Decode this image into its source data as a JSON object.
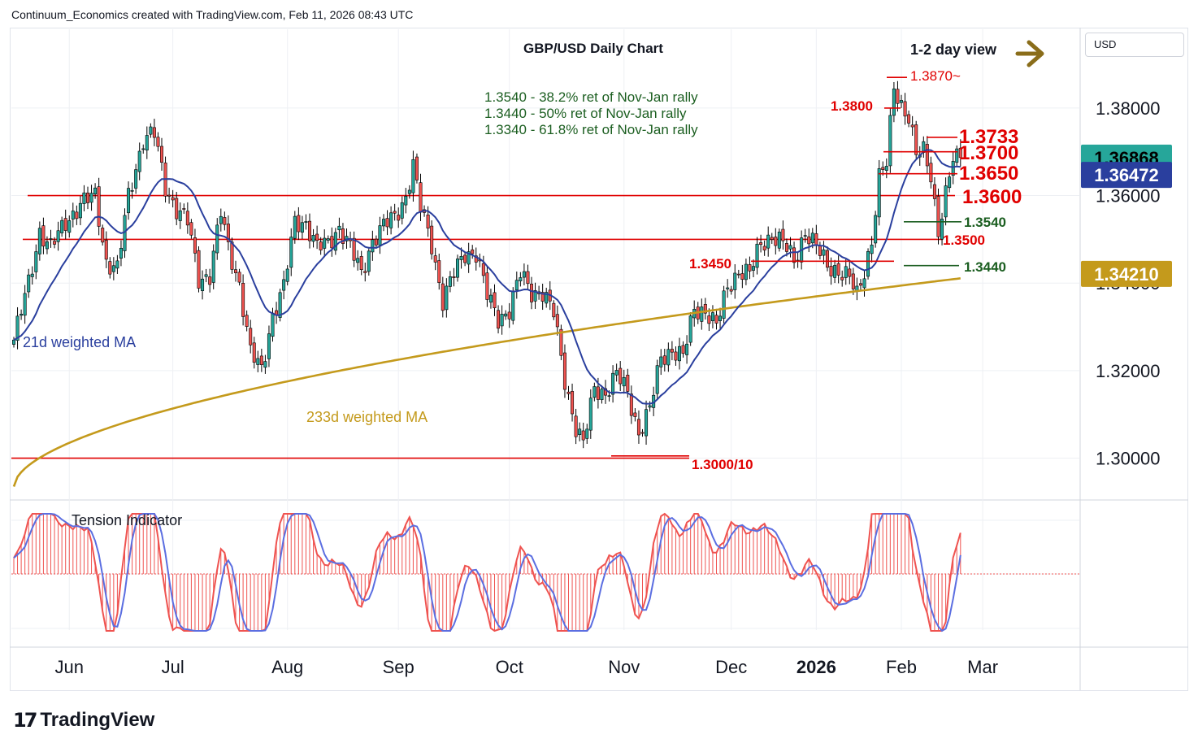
{
  "header": {
    "attribution": "Continuum_Economics created with TradingView.com, Feb 11, 2026 08:43 UTC"
  },
  "footer": {
    "brand": "TradingView"
  },
  "currency_selector": "USD",
  "colors": {
    "up": "#26a69a",
    "down": "#ef5350",
    "ma21": "#2a3f9e",
    "ma233": "#c49a1c",
    "level": "#e00000",
    "fib": "#1b5e20",
    "arrow": "#8a6d1a",
    "grid": "#eef0f4"
  },
  "chart_data": [
    {
      "type": "candlestick",
      "title": "GBP/USD Daily Chart",
      "subtitle": "1-2 day view",
      "x_ticks": [
        "Jun",
        "Jul",
        "Aug",
        "Sep",
        "Oct",
        "Nov",
        "Dec",
        "2026",
        "Feb",
        "Mar"
      ],
      "y_ticks": [
        "1.30000",
        "1.32000",
        "1.34000",
        "1.36000",
        "1.38000"
      ],
      "ylim": [
        1.291,
        1.398
      ],
      "grid": true,
      "price_badges": [
        {
          "label": "1.36868",
          "value": 1.36868,
          "color": "#26a69a",
          "text_color": "#000000"
        },
        {
          "label": "1.36472",
          "value": 1.36472,
          "color": "#2a3f9e",
          "text_color": "#ffffff"
        },
        {
          "label": "1.34210",
          "value": 1.3421,
          "color": "#c49a1c",
          "text_color": "#ffffff"
        }
      ],
      "horizontal_levels": [
        1.36,
        1.35,
        1.3
      ],
      "level_labels": [
        {
          "label": "1.3870~",
          "value": 1.387
        },
        {
          "label": "1.3800",
          "value": 1.38
        },
        {
          "label": "1.3733",
          "value": 1.3733
        },
        {
          "label": "1.3700",
          "value": 1.37
        },
        {
          "label": "1.3650",
          "value": 1.365
        },
        {
          "label": "1.3600",
          "value": 1.36
        },
        {
          "label": "1.3540",
          "value": 1.354
        },
        {
          "label": "1.3500",
          "value": 1.35
        },
        {
          "label": "1.3450",
          "value": 1.345
        },
        {
          "label": "1.3440",
          "value": 1.344
        },
        {
          "label": "1.3000/10",
          "value": 1.3005
        }
      ],
      "annotations": [
        "1.3540 - 38.2% ret of Nov-Jan rally",
        "1.3440 - 50% ret of Nov-Jan rally",
        "1.3340 - 61.8% ret of Nov-Jan rally"
      ],
      "series_labels": {
        "ma21": "21d weighted MA",
        "ma233": "233d weighted MA"
      },
      "anchors": [
        [
          0,
          1.327
        ],
        [
          4,
          1.34
        ],
        [
          7,
          1.352
        ],
        [
          10,
          1.348
        ],
        [
          14,
          1.354
        ],
        [
          18,
          1.358
        ],
        [
          22,
          1.36
        ],
        [
          25,
          1.345
        ],
        [
          28,
          1.343
        ],
        [
          31,
          1.36
        ],
        [
          35,
          1.373
        ],
        [
          38,
          1.374
        ],
        [
          41,
          1.362
        ],
        [
          44,
          1.357
        ],
        [
          47,
          1.354
        ],
        [
          50,
          1.341
        ],
        [
          53,
          1.342
        ],
        [
          56,
          1.356
        ],
        [
          58,
          1.348
        ],
        [
          61,
          1.34
        ],
        [
          64,
          1.324
        ],
        [
          67,
          1.32
        ],
        [
          70,
          1.333
        ],
        [
          73,
          1.339
        ],
        [
          76,
          1.354
        ],
        [
          79,
          1.354
        ],
        [
          82,
          1.348
        ],
        [
          85,
          1.349
        ],
        [
          88,
          1.353
        ],
        [
          91,
          1.348
        ],
        [
          94,
          1.342
        ],
        [
          97,
          1.35
        ],
        [
          100,
          1.353
        ],
        [
          103,
          1.355
        ],
        [
          106,
          1.36
        ],
        [
          108,
          1.367
        ],
        [
          110,
          1.357
        ],
        [
          113,
          1.349
        ],
        [
          116,
          1.336
        ],
        [
          119,
          1.342
        ],
        [
          122,
          1.347
        ],
        [
          125,
          1.347
        ],
        [
          128,
          1.337
        ],
        [
          131,
          1.332
        ],
        [
          134,
          1.334
        ],
        [
          137,
          1.342
        ],
        [
          140,
          1.338
        ],
        [
          143,
          1.338
        ],
        [
          146,
          1.333
        ],
        [
          149,
          1.318
        ],
        [
          152,
          1.307
        ],
        [
          154,
          1.303
        ],
        [
          157,
          1.316
        ],
        [
          160,
          1.315
        ],
        [
          163,
          1.319
        ],
        [
          166,
          1.315
        ],
        [
          169,
          1.306
        ],
        [
          172,
          1.311
        ],
        [
          175,
          1.323
        ],
        [
          178,
          1.325
        ],
        [
          181,
          1.323
        ],
        [
          184,
          1.334
        ],
        [
          187,
          1.334
        ],
        [
          190,
          1.33
        ],
        [
          193,
          1.339
        ],
        [
          196,
          1.343
        ],
        [
          199,
          1.342
        ],
        [
          202,
          1.349
        ],
        [
          205,
          1.351
        ],
        [
          208,
          1.349
        ],
        [
          211,
          1.345
        ],
        [
          214,
          1.352
        ],
        [
          217,
          1.348
        ],
        [
          220,
          1.344
        ],
        [
          223,
          1.343
        ],
        [
          226,
          1.341
        ],
        [
          228,
          1.337
        ],
        [
          230,
          1.343
        ],
        [
          232,
          1.35
        ],
        [
          234,
          1.364
        ],
        [
          236,
          1.367
        ],
        [
          238,
          1.385
        ],
        [
          240,
          1.381
        ],
        [
          242,
          1.378
        ],
        [
          244,
          1.369
        ],
        [
          246,
          1.37
        ],
        [
          248,
          1.365
        ],
        [
          250,
          1.352
        ],
        [
          252,
          1.36
        ],
        [
          254,
          1.368
        ],
        [
          256,
          1.3687
        ]
      ],
      "last_close": 1.36868
    }
  ],
  "tension_indicator": {
    "label": "Tension Indicator"
  }
}
